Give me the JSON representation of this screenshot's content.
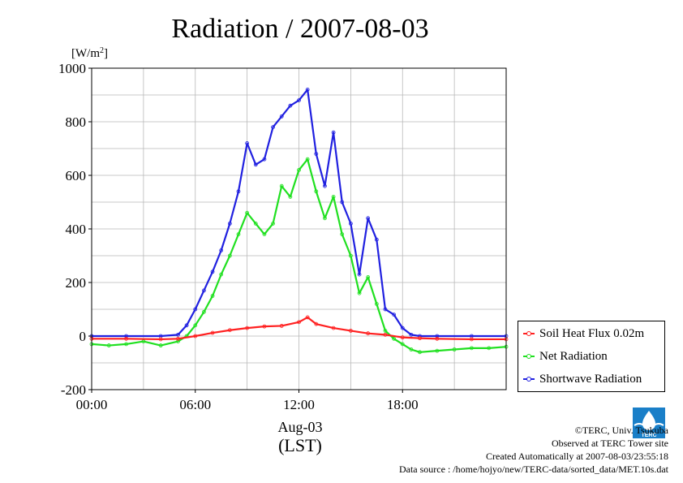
{
  "chart_data": {
    "type": "line",
    "title": "Radiation / 2007-08-03",
    "ylabel_unit": "[W/m",
    "ylabel_sup": "2",
    "ylabel_close": "]",
    "xlabel_date": "Aug-03",
    "xlabel": "(LST)",
    "ylim": [
      -200,
      1000
    ],
    "xlim": [
      0,
      24
    ],
    "yticks": [
      -200,
      0,
      200,
      400,
      600,
      800,
      1000
    ],
    "xticks": [
      "00:00",
      "06:00",
      "12:00",
      "18:00"
    ],
    "grid": true,
    "legend_position": "bottom-right outside",
    "series": [
      {
        "name": "Soil Heat Flux 0.02m",
        "color": "#ff2020",
        "x": [
          0,
          2,
          4,
          5,
          6,
          7,
          8,
          9,
          10,
          11,
          12,
          12.5,
          13,
          14,
          15,
          16,
          17,
          18,
          19,
          20,
          22,
          24
        ],
        "y": [
          -10,
          -10,
          -12,
          -10,
          0,
          12,
          22,
          30,
          36,
          38,
          52,
          70,
          45,
          30,
          20,
          10,
          5,
          -5,
          -8,
          -10,
          -12,
          -12
        ]
      },
      {
        "name": "Net Radiation",
        "color": "#20e020",
        "x": [
          0,
          1,
          2,
          3,
          4,
          5,
          5.5,
          6,
          6.5,
          7,
          7.5,
          8,
          8.5,
          9,
          9.5,
          10,
          10.5,
          11,
          11.5,
          12,
          12.5,
          13,
          13.5,
          14,
          14.5,
          15,
          15.5,
          16,
          16.5,
          17,
          17.5,
          18,
          18.5,
          19,
          20,
          21,
          22,
          23,
          24
        ],
        "y": [
          -30,
          -35,
          -30,
          -20,
          -35,
          -20,
          0,
          40,
          90,
          150,
          230,
          300,
          380,
          460,
          420,
          380,
          420,
          560,
          520,
          620,
          660,
          540,
          440,
          520,
          380,
          300,
          160,
          220,
          120,
          20,
          -10,
          -30,
          -50,
          -60,
          -55,
          -50,
          -45,
          -45,
          -40
        ]
      },
      {
        "name": "Shortwave Radiation",
        "color": "#2020e0",
        "x": [
          0,
          2,
          4,
          5,
          5.5,
          6,
          6.5,
          7,
          7.5,
          8,
          8.5,
          9,
          9.5,
          10,
          10.5,
          11,
          11.5,
          12,
          12.5,
          13,
          13.5,
          14,
          14.5,
          15,
          15.5,
          16,
          16.5,
          17,
          17.5,
          18,
          18.5,
          19,
          20,
          22,
          24
        ],
        "y": [
          0,
          0,
          0,
          5,
          40,
          100,
          170,
          240,
          320,
          420,
          540,
          720,
          640,
          660,
          780,
          820,
          860,
          880,
          920,
          680,
          560,
          760,
          500,
          420,
          230,
          440,
          360,
          100,
          80,
          30,
          5,
          0,
          0,
          0,
          0
        ]
      }
    ]
  },
  "credits": {
    "copyright": "©TERC, Univ. Tsukuba",
    "observed": "Observed at TERC Tower site",
    "created": "Created Automatically at 2007-08-03/23:55:18",
    "source": "Data source : /home/hojyo/new/TERC-data/sorted_data/MET.10s.dat"
  },
  "logo_text": "TERC"
}
